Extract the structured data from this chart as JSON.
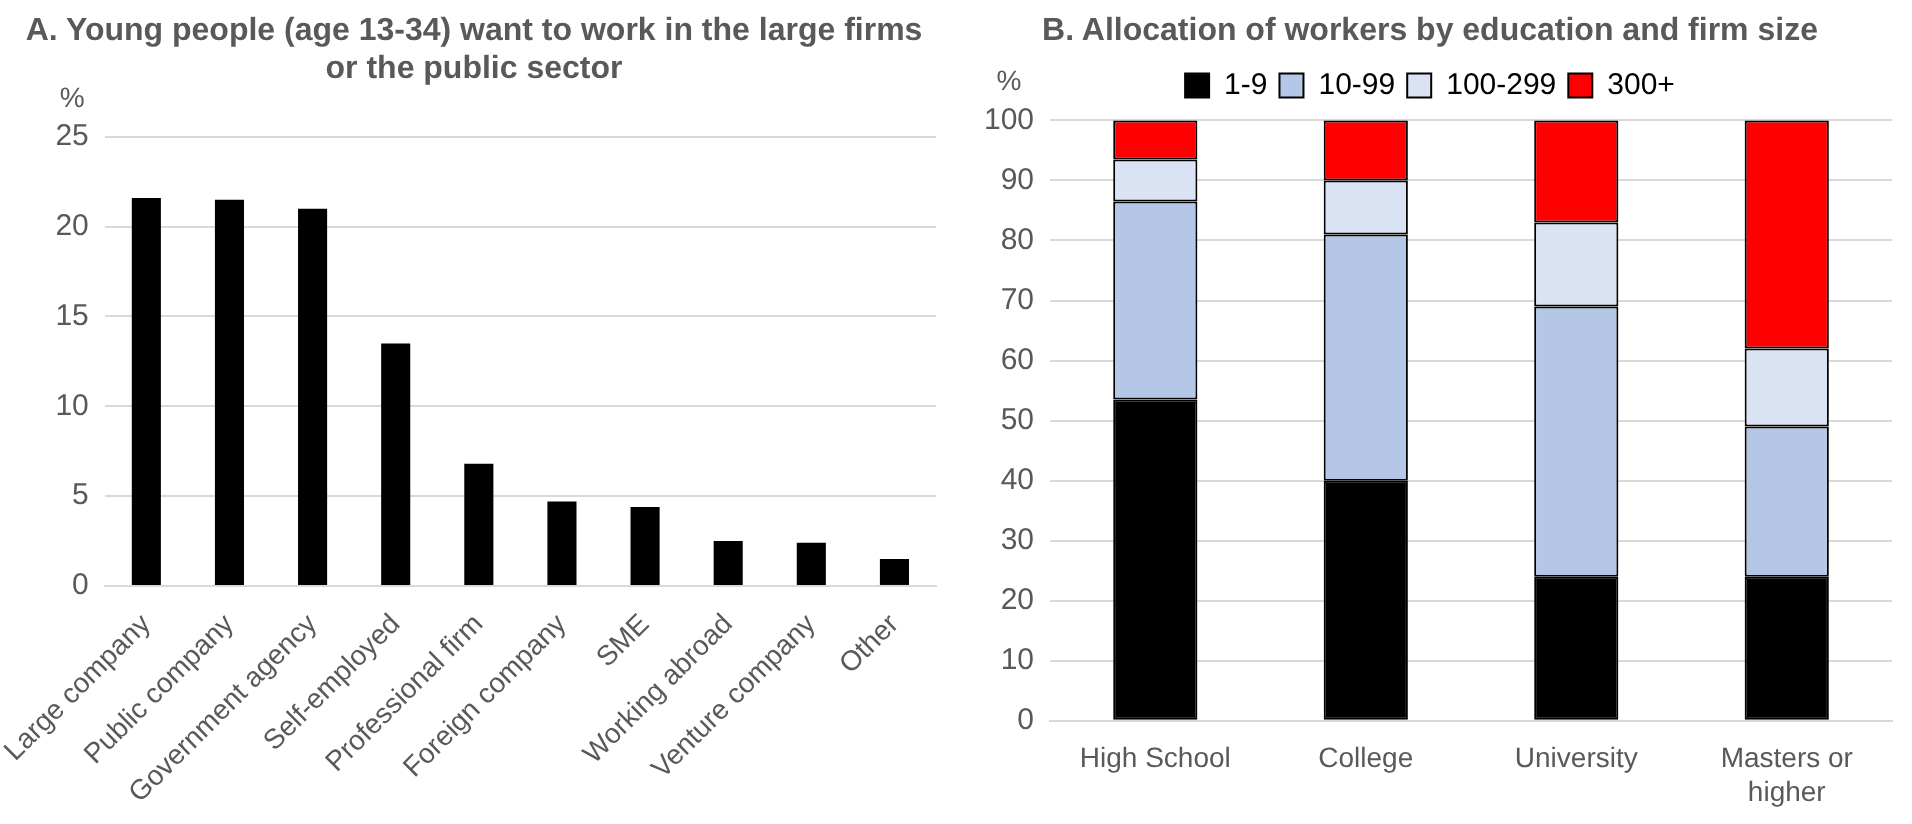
{
  "chart_data": [
    {
      "type": "bar",
      "title": "A. Young people (age 13-34) want to work in the large firms or the public sector",
      "ylabel": "%",
      "categories": [
        "Large company",
        "Public company",
        "Government agency",
        "Self-employed",
        "Professional firm",
        "Foreign company",
        "SME",
        "Working abroad",
        "Venture company",
        "Other"
      ],
      "values": [
        21.6,
        21.5,
        21.0,
        13.5,
        6.8,
        4.7,
        4.4,
        2.5,
        2.4,
        1.5
      ],
      "color": "#000000",
      "ylim": [
        0,
        25
      ],
      "yticks": [
        0,
        5,
        10,
        15,
        20,
        25
      ],
      "grid": "y",
      "legend": false
    },
    {
      "type": "bar",
      "title": "B. Allocation of workers by education and firm size",
      "ylabel": "%",
      "stacked": true,
      "categories": [
        "High School",
        "College",
        "University",
        "Masters or higher"
      ],
      "series": [
        {
          "name": "1-9",
          "color": "#000000",
          "values": [
            53.5,
            40,
            24,
            24
          ]
        },
        {
          "name": "10-99",
          "color": "#b4c7e7",
          "values": [
            33,
            41,
            45,
            25
          ]
        },
        {
          "name": "100-299",
          "color": "#dae3f3",
          "values": [
            7,
            9,
            14,
            13
          ]
        },
        {
          "name": "300+",
          "color": "#ff0000",
          "values": [
            6.5,
            10,
            17,
            38
          ]
        }
      ],
      "ylim": [
        0,
        100
      ],
      "yticks": [
        0,
        10,
        20,
        30,
        40,
        50,
        60,
        70,
        80,
        90,
        100
      ],
      "grid": "y",
      "legend": "top"
    }
  ]
}
